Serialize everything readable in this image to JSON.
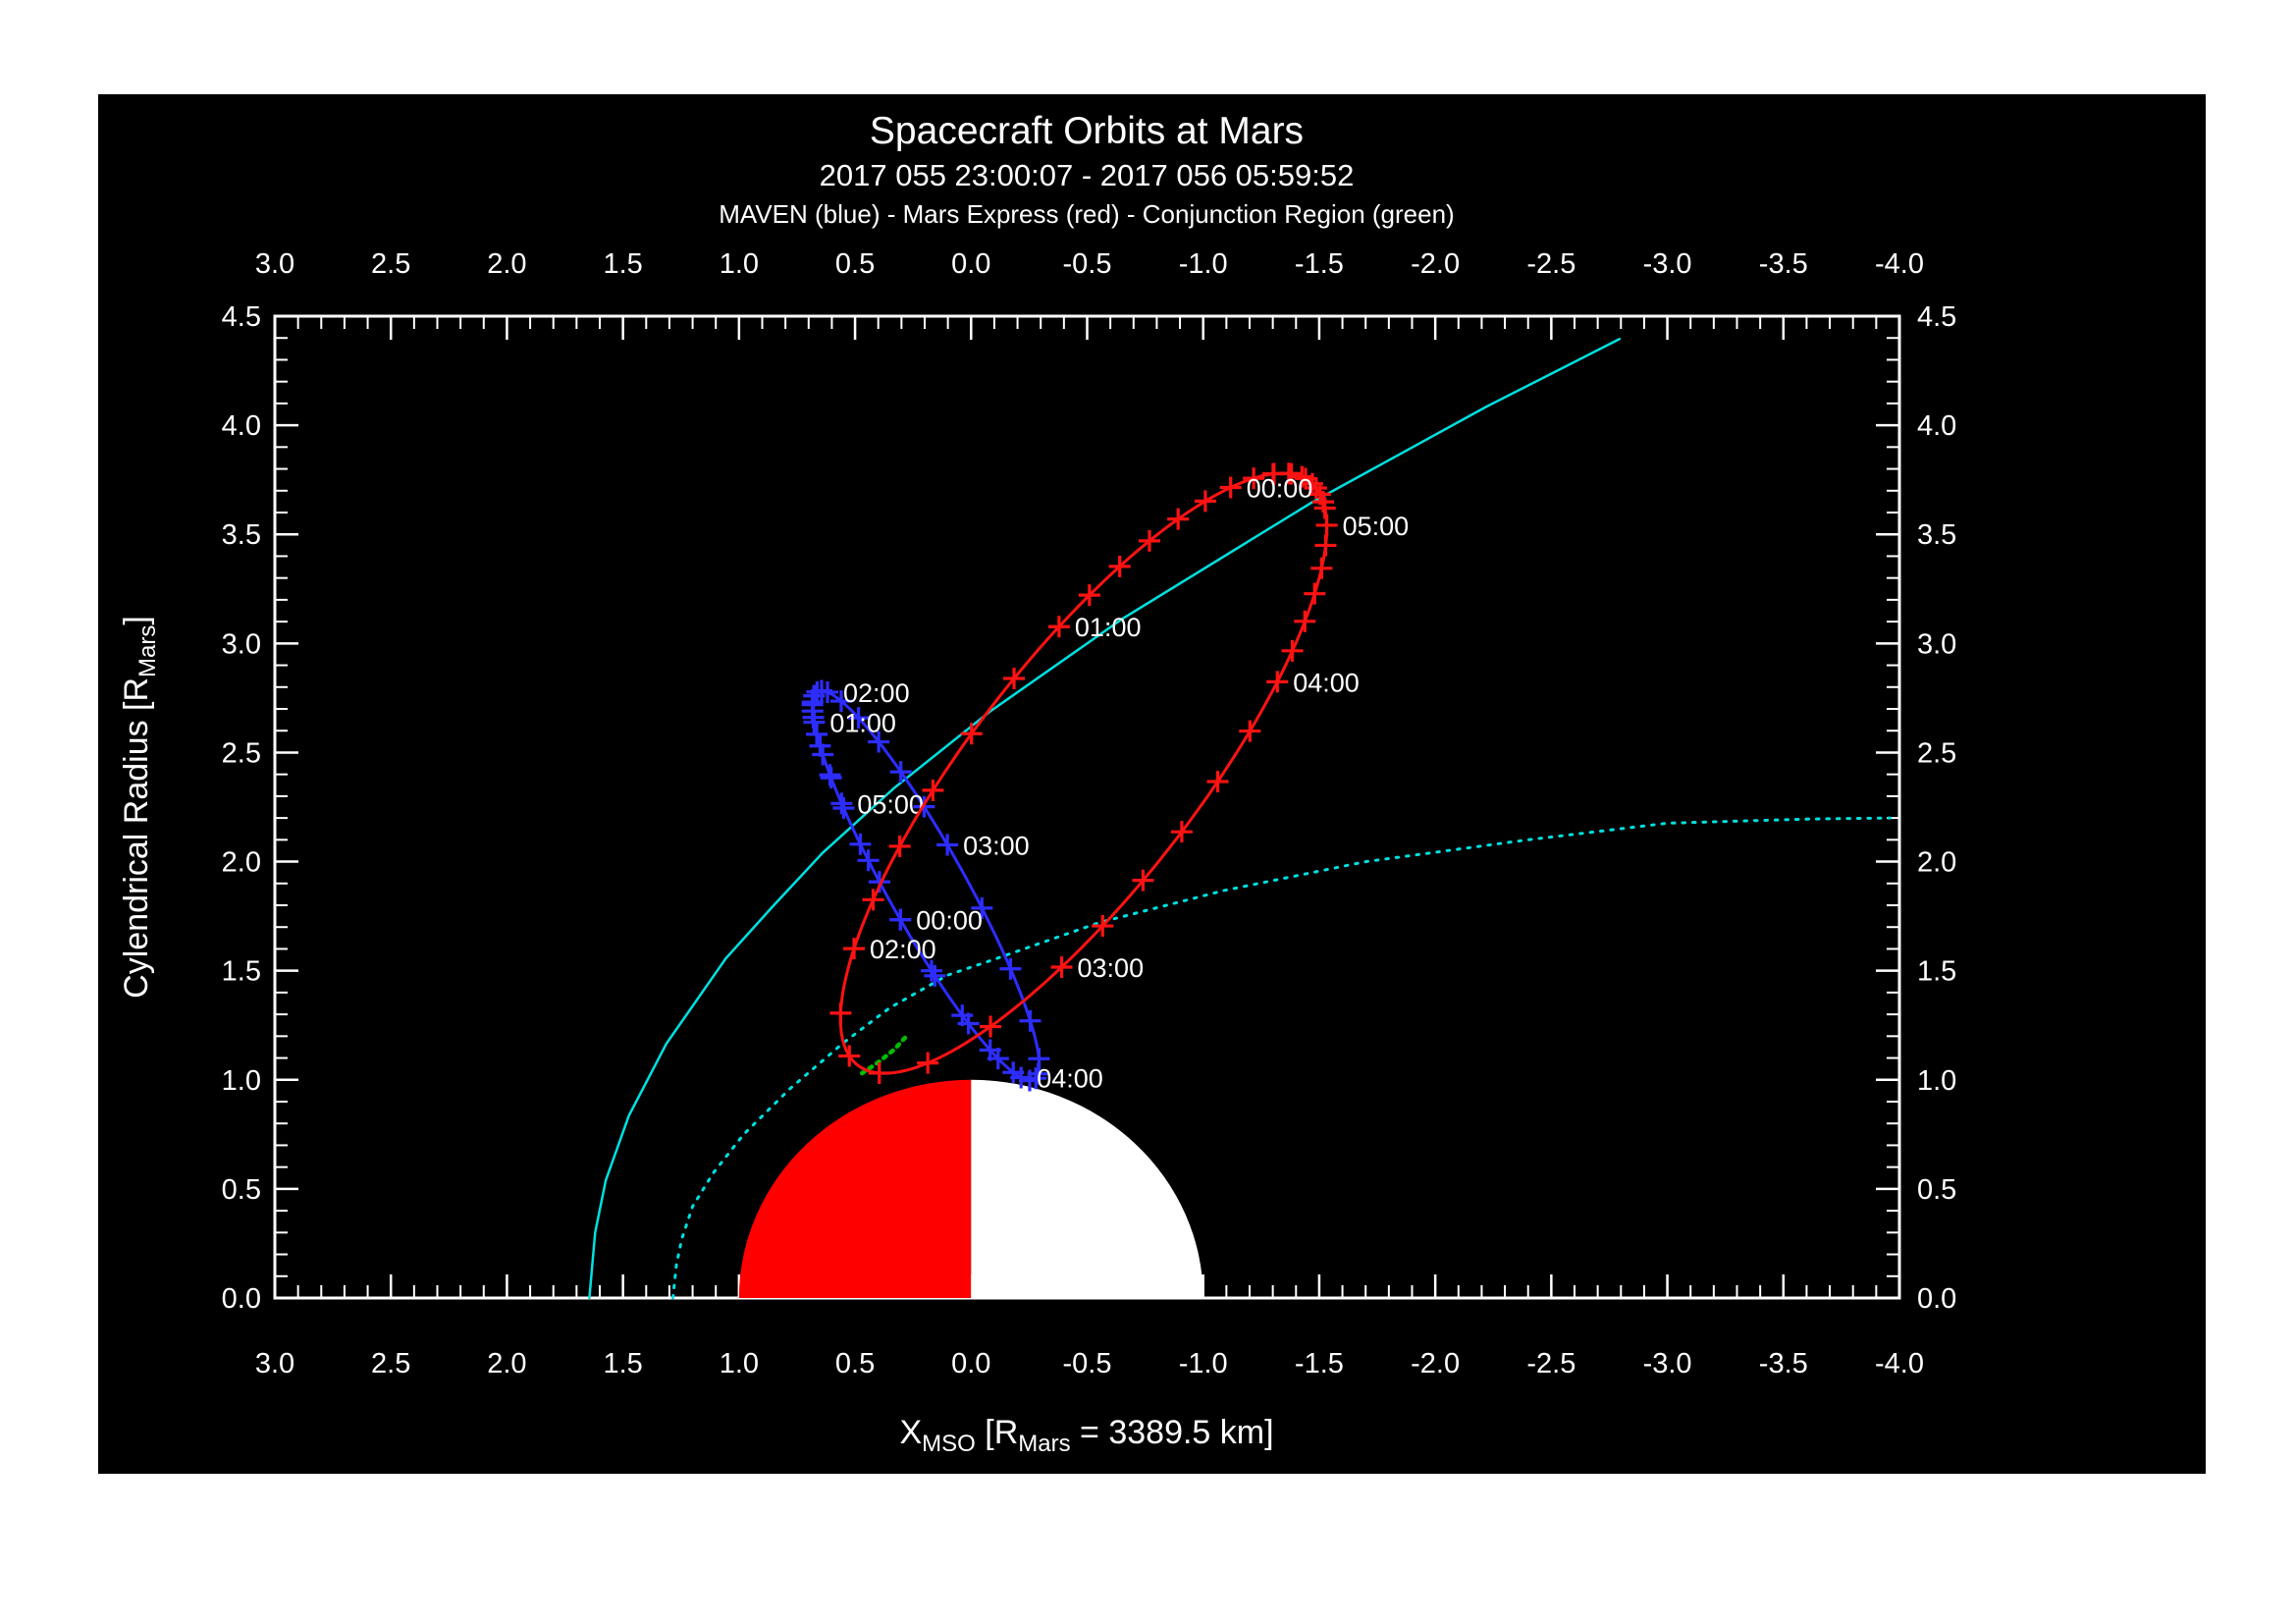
{
  "chart_data": {
    "type": "line",
    "title": "Spacecraft Orbits at Mars",
    "subtitle": "2017 055 23:00:07 - 2017 056 05:59:52",
    "legend": "MAVEN (blue) - Mars Express (red) - Conjunction Region (green)",
    "background": "#000000",
    "frame_color": "#ffffff",
    "x_axis": {
      "label_parts": [
        [
          "X",
          false
        ],
        [
          "MSO",
          true
        ],
        [
          " [R",
          false
        ],
        [
          "Mars",
          true
        ],
        [
          " = 3389.5 km]",
          false
        ]
      ],
      "min": 3.0,
      "max": -4.0,
      "minor_step": 0.1,
      "tick_values": [
        3.0,
        2.5,
        2.0,
        1.5,
        1.0,
        0.5,
        0.0,
        -0.5,
        -1.0,
        -1.5,
        -2.0,
        -2.5,
        -3.0,
        -3.5,
        -4.0
      ],
      "tick_labels": [
        "3.0",
        "2.5",
        "2.0",
        "1.5",
        "1.0",
        "0.5",
        "0.0",
        "-0.5",
        "-1.0",
        "-1.5",
        "-2.0",
        "-2.5",
        "-3.0",
        "-3.5",
        "-4.0"
      ]
    },
    "y_axis": {
      "label_parts": [
        [
          "Cylendrical Radius [R",
          false
        ],
        [
          "Mars",
          true
        ],
        [
          "]",
          false
        ]
      ],
      "min": 0.0,
      "max": 4.5,
      "minor_step": 0.1,
      "tick_values": [
        0.0,
        0.5,
        1.0,
        1.5,
        2.0,
        2.5,
        3.0,
        3.5,
        4.0,
        4.5
      ],
      "tick_labels": [
        "0.0",
        "0.5",
        "1.0",
        "1.5",
        "2.0",
        "2.5",
        "3.0",
        "3.5",
        "4.0",
        "4.5"
      ]
    },
    "mars": {
      "radius": 1.0,
      "dayside_color": "#ff0000",
      "nightside_color": "#ffffff"
    },
    "boundaries": [
      {
        "name": "bow-shock",
        "color": "#00e0e0",
        "style": "solid",
        "points": [
          [
            1.645,
            0.0
          ],
          [
            1.62,
            0.3
          ],
          [
            1.574,
            0.539
          ],
          [
            1.475,
            0.835
          ],
          [
            1.313,
            1.166
          ],
          [
            1.057,
            1.556
          ],
          [
            0.85,
            1.8
          ],
          [
            0.64,
            2.04
          ],
          [
            0.332,
            2.337
          ],
          [
            -0.08,
            2.687
          ],
          [
            -0.649,
            3.111
          ],
          [
            -1.463,
            3.643
          ],
          [
            -2.219,
            4.084
          ],
          [
            -2.794,
            4.395
          ]
        ]
      },
      {
        "name": "induced-magnetosphere-boundary",
        "color": "#00e0e0",
        "style": "dotted",
        "points": [
          [
            1.285,
            0.0
          ],
          [
            1.27,
            0.15
          ],
          [
            1.247,
            0.27
          ],
          [
            1.2,
            0.42
          ],
          [
            1.111,
            0.573
          ],
          [
            0.98,
            0.75
          ],
          [
            0.78,
            0.96
          ],
          [
            0.55,
            1.17
          ],
          [
            0.35,
            1.33
          ],
          [
            0.1,
            1.48
          ],
          [
            -0.093,
            1.55
          ],
          [
            -0.55,
            1.72
          ],
          [
            -1.087,
            1.867
          ],
          [
            -1.7,
            2.0
          ],
          [
            -2.4,
            2.1
          ],
          [
            -3.0,
            2.176
          ],
          [
            -3.6,
            2.195
          ],
          [
            -3.96,
            2.2
          ]
        ]
      }
    ],
    "orbits": [
      {
        "name": "MAVEN",
        "color": "#2d2dff",
        "ellipse": {
          "cx": 0.195,
          "cy": 1.89,
          "a": 1.004,
          "b": 0.17,
          "tilt_deg": 62.4
        },
        "hour_anchor_theta_deg": [
          170,
          265,
          332,
          372,
          443,
          555,
          660,
          712
        ],
        "hour_labels": [
          "",
          "00:00",
          "01:00",
          "02:00",
          "03:00",
          "04:00",
          "05:00",
          ""
        ]
      },
      {
        "name": "Mars Express",
        "color": "#ff1212",
        "ellipse": {
          "cx": -0.485,
          "cy": 2.405,
          "a": 1.655,
          "b": 0.5,
          "tilt_deg": 125.7
        },
        "hour_anchor_theta_deg": [
          373,
          330,
          287,
          222,
          118,
          60,
          22,
          -16
        ],
        "hour_labels": [
          "",
          "00:00",
          "01:00",
          "02:00",
          "03:00",
          "04:00",
          "05:00",
          ""
        ]
      }
    ],
    "conjunction": {
      "color": "#00bb00",
      "points": [
        [
          0.47,
          1.03
        ],
        [
          0.4,
          1.08
        ],
        [
          0.33,
          1.14
        ],
        [
          0.27,
          1.21
        ]
      ]
    }
  }
}
